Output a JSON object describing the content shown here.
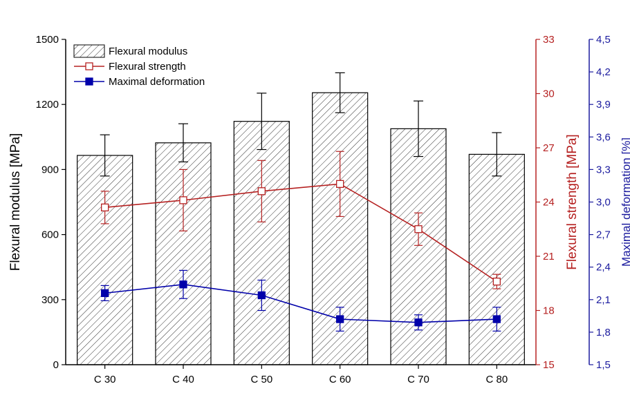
{
  "chart_data": {
    "type": "bar",
    "categories": [
      "C 30",
      "C 40",
      "C 50",
      "C 60",
      "C 70",
      "C 80"
    ],
    "bars": {
      "name": "Flexural modulus",
      "values": [
        965,
        1023,
        1122,
        1254,
        1088,
        970
      ],
      "errors": [
        95,
        88,
        130,
        92,
        128,
        100
      ],
      "fill_pattern": "diagonal-hatch",
      "color": "#000000"
    },
    "lines": [
      {
        "name": "Flexural strength",
        "axis": "right1",
        "color": "#b52020",
        "marker": "open-square",
        "values": [
          23.7,
          24.1,
          24.6,
          25.0,
          22.5,
          19.6
        ],
        "errors": [
          0.9,
          1.7,
          1.7,
          1.8,
          0.9,
          0.4
        ]
      },
      {
        "name": "Maximal deformation",
        "axis": "right2",
        "color": "#0000aa",
        "marker": "filled-square",
        "values": [
          2.16,
          2.24,
          2.14,
          1.92,
          1.89,
          1.92
        ],
        "errors": [
          0.07,
          0.13,
          0.14,
          0.11,
          0.07,
          0.11
        ]
      }
    ],
    "y_left": {
      "label": "Flexural modulus [MPa]",
      "min": 0,
      "max": 1500,
      "ticks": [
        "0",
        "300",
        "600",
        "900",
        "1200",
        "1500"
      ]
    },
    "y_right1": {
      "label": "Flexural strength [MPa]",
      "min": 15,
      "max": 33,
      "ticks": [
        "15",
        "18",
        "21",
        "24",
        "27",
        "30",
        "33"
      ],
      "color": "#b52020"
    },
    "y_right2": {
      "label": "Maximal deformation [%]",
      "min": 1.5,
      "max": 4.5,
      "ticks": [
        "1,5",
        "1,8",
        "2,1",
        "2,4",
        "2,7",
        "3,0",
        "3,3",
        "3,6",
        "3,9",
        "4,2",
        "4,5"
      ],
      "color": "#1a1a9e"
    },
    "legend": {
      "position": "top-left",
      "entries": [
        "Flexural modulus",
        "Flexural strength",
        "Maximal deformation"
      ]
    },
    "grid": false
  }
}
